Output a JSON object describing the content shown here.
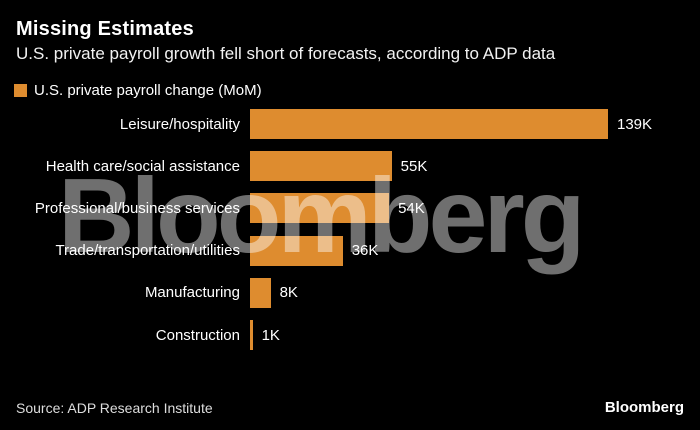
{
  "header": {
    "title": "Missing Estimates",
    "subtitle": "U.S. private payroll growth fell short of forecasts, according to ADP data"
  },
  "legend": {
    "label": "U.S. private payroll change (MoM)"
  },
  "chart_data": {
    "type": "bar",
    "orientation": "horizontal",
    "title": "Missing Estimates",
    "subtitle": "U.S. private payroll growth fell short of forecasts, according to ADP data",
    "series_label": "U.S. private payroll change (MoM)",
    "categories": [
      "Leisure/hospitality",
      "Health care/social assistance",
      "Professional/business services",
      "Trade/transportation/utilities",
      "Manufacturing",
      "Construction"
    ],
    "values": [
      139,
      55,
      54,
      36,
      8,
      1
    ],
    "value_labels": [
      "139K",
      "55K",
      "54K",
      "36K",
      "8K",
      "1K"
    ],
    "unit": "thousands of jobs",
    "xlim": [
      0,
      139
    ],
    "grid": false,
    "legend_position": "top-left",
    "bar_color": "#DE8C2F"
  },
  "watermark": {
    "text": "Bloomberg",
    "color": "#6F6F6F"
  },
  "footer": {
    "source": "Source: ADP Research Institute",
    "logo": "Bloomberg"
  },
  "colors": {
    "background": "#000000",
    "bar": "#DE8C2F",
    "text": "#FFFFFF",
    "source_text": "#DDDDDD",
    "watermark": "#6F6F6F"
  }
}
